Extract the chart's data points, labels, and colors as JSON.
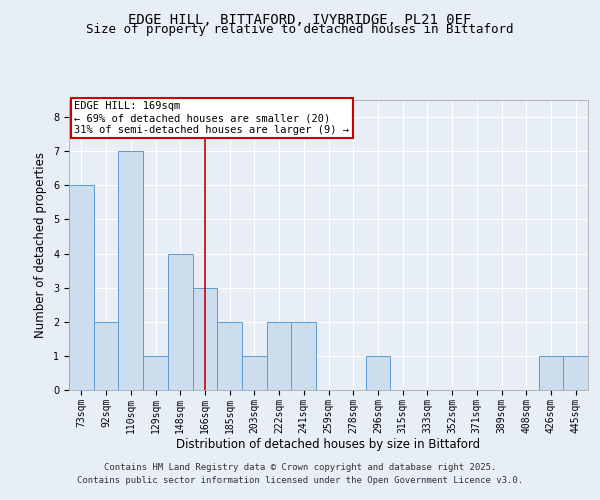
{
  "title_line1": "EDGE HILL, BITTAFORD, IVYBRIDGE, PL21 0EF",
  "title_line2": "Size of property relative to detached houses in Bittaford",
  "xlabel": "Distribution of detached houses by size in Bittaford",
  "ylabel": "Number of detached properties",
  "categories": [
    "73sqm",
    "92sqm",
    "110sqm",
    "129sqm",
    "148sqm",
    "166sqm",
    "185sqm",
    "203sqm",
    "222sqm",
    "241sqm",
    "259sqm",
    "278sqm",
    "296sqm",
    "315sqm",
    "333sqm",
    "352sqm",
    "371sqm",
    "389sqm",
    "408sqm",
    "426sqm",
    "445sqm"
  ],
  "values": [
    6,
    2,
    7,
    1,
    4,
    3,
    2,
    1,
    2,
    2,
    0,
    0,
    1,
    0,
    0,
    0,
    0,
    0,
    0,
    1,
    1
  ],
  "bar_color": "#ccdded",
  "bar_edge_color": "#5b9bd5",
  "vline_x_index": 5,
  "vline_color": "#cc0000",
  "annotation_text": "EDGE HILL: 169sqm\n← 69% of detached houses are smaller (20)\n31% of semi-detached houses are larger (9) →",
  "annotation_box_color": "#ffffff",
  "annotation_box_edge": "#cc0000",
  "ylim": [
    0,
    8.5
  ],
  "yticks": [
    0,
    1,
    2,
    3,
    4,
    5,
    6,
    7,
    8
  ],
  "background_color": "#e8eef5",
  "plot_bg_color": "#e8eef5",
  "footer_line1": "Contains HM Land Registry data © Crown copyright and database right 2025.",
  "footer_line2": "Contains public sector information licensed under the Open Government Licence v3.0.",
  "grid_color": "#ffffff",
  "title_fontsize": 10,
  "subtitle_fontsize": 9,
  "axis_label_fontsize": 8.5,
  "tick_fontsize": 7,
  "annotation_fontsize": 7.5,
  "footer_fontsize": 6.5
}
